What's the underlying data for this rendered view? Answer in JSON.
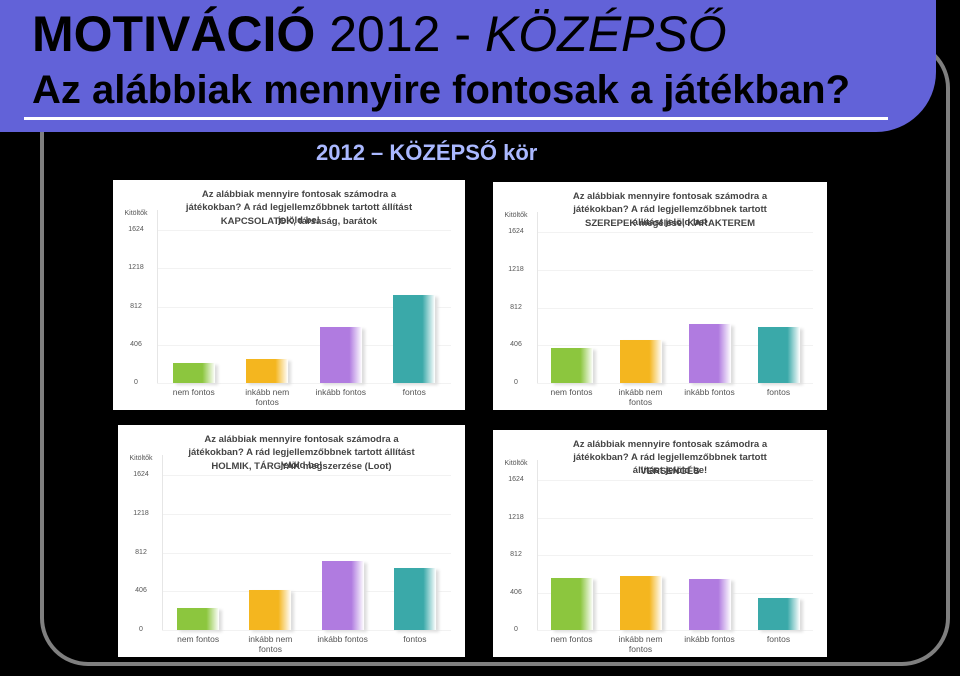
{
  "slide": {
    "title_parts": [
      "MOTIVÁCIÓ",
      "2012 -",
      "KÖZÉPSŐ"
    ],
    "subtitle": "Az alábbiak mennyire fontosak a játékban?",
    "heading": "2012 – KÖZÉPSŐ kör"
  },
  "chart_data": [
    {
      "type": "bar",
      "title": "Az alábbiak mennyire fontosak számodra a játékokban? A rád legjellemzőbbnek tartott állítást jelöld be!",
      "subtitle": "KAPCSOLATOK, társaság, barátok",
      "y_label": "Kitöltők",
      "categories": [
        "nem fontos",
        "inkább nem fontos",
        "inkább fontos",
        "fontos"
      ],
      "values": [
        214,
        257,
        590,
        930
      ],
      "colors": [
        "#8cc63e",
        "#f4b61f",
        "#b07be0",
        "#3aa9a9"
      ],
      "ylim": [
        0,
        1624
      ],
      "yticks": [
        0,
        406,
        812,
        1218,
        1624
      ],
      "grid": true
    },
    {
      "type": "bar",
      "title": "Az alábbiak mennyire fontosak számodra a játékokban? A rád legjellemzőbbnek tartott állítást jelöld be!",
      "subtitle": "SZEREPEK megélése, KARAKTEREM",
      "y_label": "Kitöltők",
      "categories": [
        "nem fontos",
        "inkább nem fontos",
        "inkább fontos",
        "fontos"
      ],
      "values": [
        372,
        462,
        632,
        598
      ],
      "colors": [
        "#8cc63e",
        "#f4b61f",
        "#b07be0",
        "#3aa9a9"
      ],
      "ylim": [
        0,
        1624
      ],
      "yticks": [
        0,
        406,
        812,
        1218,
        1624
      ],
      "grid": true
    },
    {
      "type": "bar",
      "title": "Az alábbiak mennyire fontosak számodra a játékokban? A rád legjellemzőbbnek tartott állítást jelöld be!",
      "subtitle": "HOLMIK, TÁRGYAK megszerzése (Loot)",
      "y_label": "Kitöltők",
      "categories": [
        "nem fontos",
        "inkább nem fontos",
        "inkább fontos",
        "fontos"
      ],
      "values": [
        229,
        416,
        718,
        645
      ],
      "colors": [
        "#8cc63e",
        "#f4b61f",
        "#b07be0",
        "#3aa9a9"
      ],
      "ylim": [
        0,
        1624
      ],
      "yticks": [
        0,
        406,
        812,
        1218,
        1624
      ],
      "grid": true
    },
    {
      "type": "bar",
      "title": "Az alábbiak mennyire fontosak számodra a játékokban? A rád legjellemzőbbnek tartott állítást jelöld be!",
      "subtitle": "VERSENGÉS",
      "y_label": "Kitöltők",
      "categories": [
        "nem fontos",
        "inkább nem fontos",
        "inkább fontos",
        "fontos"
      ],
      "values": [
        564,
        586,
        553,
        350
      ],
      "colors": [
        "#8cc63e",
        "#f4b61f",
        "#b07be0",
        "#3aa9a9"
      ],
      "ylim": [
        0,
        1624
      ],
      "yticks": [
        0,
        406,
        812,
        1218,
        1624
      ],
      "grid": true
    }
  ]
}
